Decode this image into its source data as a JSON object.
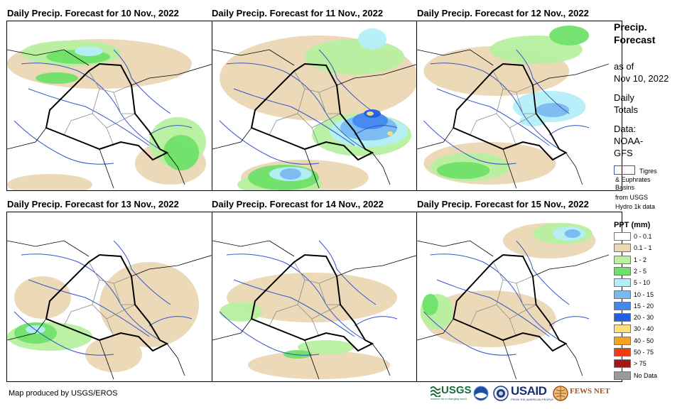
{
  "panels": [
    {
      "title": "Daily Precip. Forecast for 10 Nov., 2022"
    },
    {
      "title": "Daily Precip. Forecast for 11 Nov., 2022"
    },
    {
      "title": "Daily Precip. Forecast for 12 Nov., 2022"
    },
    {
      "title": "Daily Precip. Forecast for 13 Nov., 2022"
    },
    {
      "title": "Daily Precip. Forecast for 14 Nov., 2022"
    },
    {
      "title": "Daily Precip. Forecast for 15 Nov., 2022"
    }
  ],
  "sidebar": {
    "heading_line1": "Precip.",
    "heading_line2": "Forecast",
    "asof_line1": "as of",
    "asof_line2": "Nov 10, 2022",
    "totals_line1": "Daily",
    "totals_line2": "Totals",
    "data_line1": "Data:",
    "data_line2": "NOAA-",
    "data_line3": "GFS",
    "basin_line1": "Tigres",
    "basin_line2": "& Euphrates",
    "basin_line3": "Basins",
    "basin_line4": "from USGS",
    "basin_line5": "Hydro 1k data",
    "legend_title": "PPT (mm)"
  },
  "legend": [
    {
      "label": "0 - 0.1",
      "color": "#ffffff"
    },
    {
      "label": "0.1 - 1",
      "color": "#ead7b4"
    },
    {
      "label": "1 - 2",
      "color": "#b7f0a0"
    },
    {
      "label": "2 - 5",
      "color": "#6fe06a"
    },
    {
      "label": "5 - 10",
      "color": "#b4eef8"
    },
    {
      "label": "10 - 15",
      "color": "#7ab8f0"
    },
    {
      "label": "15 - 20",
      "color": "#4488ee"
    },
    {
      "label": "20 - 30",
      "color": "#1f5fe0"
    },
    {
      "label": "30 - 40",
      "color": "#fce17a"
    },
    {
      "label": "40 - 50",
      "color": "#f7a21b"
    },
    {
      "label": "50 - 75",
      "color": "#f23a10"
    },
    {
      "label": "> 75",
      "color": "#a01818"
    },
    {
      "label": "No Data",
      "color": "#9a9a9a"
    }
  ],
  "footer": {
    "credit": "Map produced by USGS/EROS"
  },
  "logos": {
    "usgs": "USGS",
    "usgs_tagline": "science for a changing world",
    "usaid": "USAID",
    "usaid_tagline": "FROM THE AMERICAN PEOPLE",
    "fewsnet": "FEWS NET"
  },
  "colors": {
    "basin": "#3355cc",
    "border": "#000000",
    "province": "#8a8a8a"
  }
}
